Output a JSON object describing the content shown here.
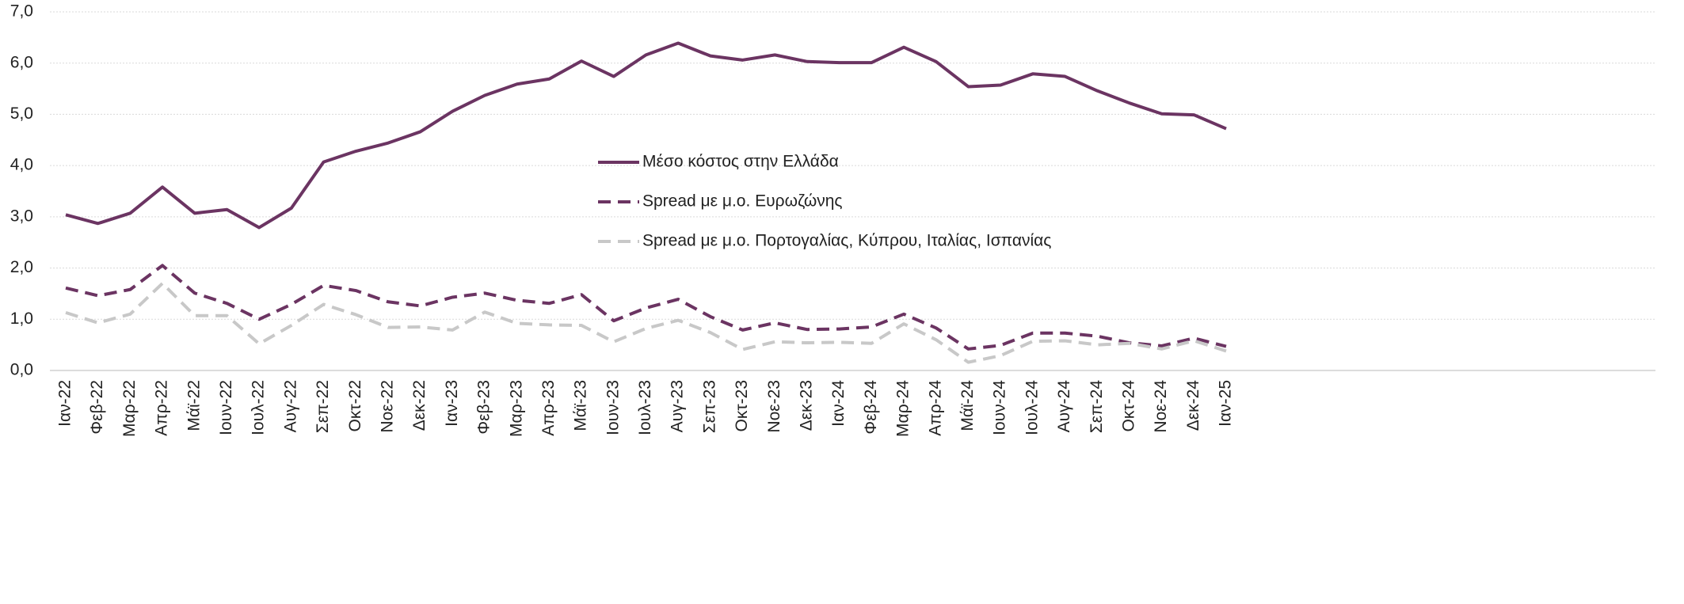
{
  "chart_data": {
    "type": "line",
    "categories": [
      "Ιαν-22",
      "Φεβ-22",
      "Μαρ-22",
      "Απρ-22",
      "Μάϊ-22",
      "Ιουν-22",
      "Ιουλ-22",
      "Αυγ-22",
      "Σεπ-22",
      "Οκτ-22",
      "Νοε-22",
      "Δεκ-22",
      "Ιαν-23",
      "Φεβ-23",
      "Μαρ-23",
      "Απρ-23",
      "Μάϊ-23",
      "Ιουν-23",
      "Ιουλ-23",
      "Αυγ-23",
      "Σεπ-23",
      "Οκτ-23",
      "Νοε-23",
      "Δεκ-23",
      "Ιαν-24",
      "Φεβ-24",
      "Μαρ-24",
      "Απρ-24",
      "Μάϊ-24",
      "Ιουν-24",
      "Ιουλ-24",
      "Αυγ-24",
      "Σεπ-24",
      "Οκτ-24",
      "Νοε-24",
      "Δεκ-24",
      "Ιαν-25"
    ],
    "series": [
      {
        "name": "Μέσο κόστος στην Ελλάδα",
        "color": "#6b3462",
        "dash": false,
        "values": [
          3.04,
          2.87,
          3.07,
          3.58,
          3.07,
          3.14,
          2.79,
          3.17,
          4.07,
          4.28,
          4.44,
          4.66,
          5.06,
          5.37,
          5.59,
          5.69,
          6.04,
          5.74,
          6.16,
          6.39,
          6.14,
          6.06,
          6.16,
          6.03,
          6.01,
          6.01,
          6.31,
          6.03,
          5.54,
          5.57,
          5.79,
          5.74,
          5.46,
          5.22,
          5.01,
          4.99,
          4.72
        ]
      },
      {
        "name": "Spread με μ.ο. Ευρωζώνης",
        "color": "#6b3462",
        "dash": true,
        "values": [
          1.61,
          1.46,
          1.58,
          2.05,
          1.51,
          1.31,
          1.0,
          1.29,
          1.66,
          1.56,
          1.34,
          1.26,
          1.43,
          1.51,
          1.37,
          1.31,
          1.48,
          0.97,
          1.22,
          1.39,
          1.05,
          0.79,
          0.93,
          0.8,
          0.81,
          0.85,
          1.1,
          0.83,
          0.42,
          0.49,
          0.73,
          0.73,
          0.67,
          0.54,
          0.48,
          0.63,
          0.47
        ]
      },
      {
        "name": "Spread με μ.ο. Πορτογαλίας, Κύπρου, Ιταλίας, Ισπανίας",
        "color": "#c8c8c8",
        "dash": true,
        "values": [
          1.13,
          0.93,
          1.1,
          1.7,
          1.07,
          1.07,
          0.52,
          0.88,
          1.29,
          1.09,
          0.84,
          0.85,
          0.79,
          1.14,
          0.92,
          0.89,
          0.88,
          0.56,
          0.82,
          0.98,
          0.74,
          0.41,
          0.56,
          0.54,
          0.55,
          0.53,
          0.91,
          0.6,
          0.16,
          0.29,
          0.57,
          0.58,
          0.5,
          0.53,
          0.42,
          0.58,
          0.38
        ]
      }
    ],
    "ylim": [
      0,
      7
    ],
    "yticks": [
      {
        "value": 0,
        "label": "0,0"
      },
      {
        "value": 1,
        "label": "1,0"
      },
      {
        "value": 2,
        "label": "2,0"
      },
      {
        "value": 3,
        "label": "3,0"
      },
      {
        "value": 4,
        "label": "4,0"
      },
      {
        "value": 5,
        "label": "5,0"
      },
      {
        "value": 6,
        "label": "6,0"
      },
      {
        "value": 7,
        "label": "7,0"
      }
    ],
    "grid": true
  }
}
